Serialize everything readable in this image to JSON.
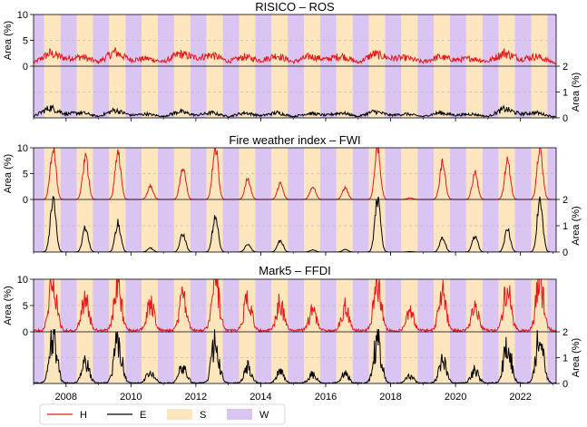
{
  "colors": {
    "H": "#e31a1c",
    "E": "#000000",
    "S": "#fde5bd",
    "W": "#d9c4f2",
    "grid": "#bdbdbd"
  },
  "chart_data": [
    {
      "type": "line",
      "title": "RISICO – ROS",
      "ylabel_left": "Area (%)",
      "ylabel_right": "Area (%)",
      "upper_ylim": [
        0,
        10
      ],
      "upper_yticks": [
        "10",
        "5",
        "0"
      ],
      "lower_ylim": [
        0,
        2
      ],
      "lower_yticks": [
        "2",
        "1",
        "0"
      ],
      "x_range": [
        2007.0,
        2023.1
      ],
      "series": [
        {
          "name": "H",
          "panel": "upper",
          "amplitude": 1.0,
          "base": 0.8,
          "x": [
            2007.0,
            2007.5,
            2008.0,
            2008.5,
            2009.0,
            2009.5,
            2010.0,
            2010.5,
            2011.0,
            2011.5,
            2012.0,
            2012.5,
            2013.0,
            2013.5,
            2014.0,
            2014.5,
            2015.0,
            2015.5,
            2016.0,
            2016.5,
            2017.0,
            2017.5,
            2018.0,
            2018.5,
            2019.0,
            2019.5,
            2020.0,
            2020.5,
            2021.0,
            2021.5,
            2022.0,
            2022.5,
            2023.0
          ],
          "values": [
            0.6,
            2.5,
            1.5,
            1.8,
            0.8,
            2.8,
            1.2,
            1.5,
            0.8,
            2.4,
            1.6,
            2.2,
            0.9,
            1.8,
            1.1,
            2.1,
            0.8,
            1.9,
            1.3,
            2.0,
            0.7,
            2.4,
            1.5,
            1.6,
            0.8,
            1.8,
            1.2,
            1.5,
            0.9,
            2.6,
            1.4,
            1.9,
            0.8
          ]
        },
        {
          "name": "E",
          "panel": "lower",
          "x": [
            2007.0,
            2007.5,
            2008.0,
            2008.5,
            2009.0,
            2009.5,
            2010.0,
            2010.5,
            2011.0,
            2011.5,
            2012.0,
            2012.5,
            2013.0,
            2013.5,
            2014.0,
            2014.5,
            2015.0,
            2015.5,
            2016.0,
            2016.5,
            2017.0,
            2017.5,
            2018.0,
            2018.5,
            2019.0,
            2019.5,
            2020.0,
            2020.5,
            2021.0,
            2021.5,
            2022.0,
            2022.5,
            2023.0
          ],
          "values": [
            0.05,
            0.4,
            0.15,
            0.2,
            0.05,
            0.3,
            0.1,
            0.15,
            0.05,
            0.25,
            0.1,
            0.2,
            0.05,
            0.2,
            0.08,
            0.2,
            0.05,
            0.18,
            0.1,
            0.2,
            0.05,
            0.25,
            0.1,
            0.15,
            0.05,
            0.2,
            0.1,
            0.15,
            0.05,
            0.35,
            0.15,
            0.2,
            0.05
          ]
        }
      ]
    },
    {
      "type": "line",
      "title": "Fire weather index – FWI",
      "ylabel_left": "Area (%)",
      "ylabel_right": "Area (%)",
      "upper_ylim": [
        0,
        10
      ],
      "upper_yticks": [
        "10",
        "5",
        "0"
      ],
      "lower_ylim": [
        0,
        2
      ],
      "lower_yticks": [
        "2",
        "1",
        "0"
      ],
      "x_range": [
        2007.0,
        2023.1
      ],
      "series": [
        {
          "name": "H",
          "panel": "upper",
          "x": [
            2007.6,
            2008.6,
            2009.6,
            2010.6,
            2011.6,
            2012.6,
            2013.6,
            2014.6,
            2015.6,
            2016.6,
            2017.6,
            2018.6,
            2019.6,
            2020.6,
            2021.6,
            2022.6
          ],
          "values": [
            10.5,
            8.0,
            9.5,
            2.5,
            6.5,
            10.2,
            4.0,
            3.0,
            2.5,
            2.2,
            10.0,
            0.3,
            7.0,
            5.0,
            7.5,
            10.0
          ]
        },
        {
          "name": "E",
          "panel": "lower",
          "x": [
            2007.6,
            2008.6,
            2009.6,
            2010.6,
            2011.6,
            2012.6,
            2013.6,
            2014.6,
            2015.6,
            2016.6,
            2017.6,
            2018.6,
            2019.6,
            2020.6,
            2021.6,
            2022.6
          ],
          "values": [
            2.0,
            0.95,
            1.1,
            0.15,
            0.7,
            1.4,
            0.3,
            0.45,
            0.08,
            0.1,
            2.0,
            0.02,
            0.55,
            0.6,
            0.85,
            2.0
          ]
        }
      ]
    },
    {
      "type": "line",
      "title": "Mark5 – FFDI",
      "ylabel_left": "Area (%)",
      "ylabel_right": "Area (%)",
      "upper_ylim": [
        0,
        10
      ],
      "upper_yticks": [
        "10",
        "5",
        "0"
      ],
      "lower_ylim": [
        0,
        2
      ],
      "lower_yticks": [
        "2",
        "1",
        "0"
      ],
      "x_range": [
        2007.0,
        2023.1
      ],
      "series": [
        {
          "name": "H",
          "panel": "upper",
          "x": [
            2007.6,
            2008.6,
            2009.6,
            2010.6,
            2011.6,
            2012.6,
            2013.6,
            2014.6,
            2015.6,
            2016.6,
            2017.6,
            2018.6,
            2019.6,
            2020.6,
            2021.6,
            2022.6
          ],
          "values": [
            10.0,
            6.5,
            9.5,
            5.0,
            6.5,
            10.2,
            6.5,
            5.5,
            4.0,
            4.5,
            10.0,
            3.5,
            7.0,
            4.5,
            8.5,
            10.0
          ]
        },
        {
          "name": "E",
          "panel": "lower",
          "x": [
            2007.6,
            2008.6,
            2009.6,
            2010.6,
            2011.6,
            2012.6,
            2013.6,
            2014.6,
            2015.6,
            2016.6,
            2017.6,
            2018.6,
            2019.6,
            2020.6,
            2021.6,
            2022.6
          ],
          "values": [
            2.0,
            0.8,
            1.9,
            0.5,
            0.7,
            1.6,
            0.65,
            0.45,
            0.35,
            0.4,
            1.8,
            0.3,
            0.9,
            0.5,
            1.7,
            2.0
          ]
        }
      ]
    }
  ],
  "x_ticks": [
    {
      "year": 2008,
      "label": "2008"
    },
    {
      "year": 2010,
      "label": "2010"
    },
    {
      "year": 2012,
      "label": "2012"
    },
    {
      "year": 2014,
      "label": "2014"
    },
    {
      "year": 2016,
      "label": "2016"
    },
    {
      "year": 2018,
      "label": "2018"
    },
    {
      "year": 2020,
      "label": "2020"
    },
    {
      "year": 2022,
      "label": "2022"
    }
  ],
  "legend": [
    {
      "key": "H",
      "label": "H",
      "kind": "line"
    },
    {
      "key": "E",
      "label": "E",
      "kind": "line"
    },
    {
      "key": "S",
      "label": "S",
      "kind": "patch"
    },
    {
      "key": "W",
      "label": "W",
      "kind": "patch"
    }
  ]
}
